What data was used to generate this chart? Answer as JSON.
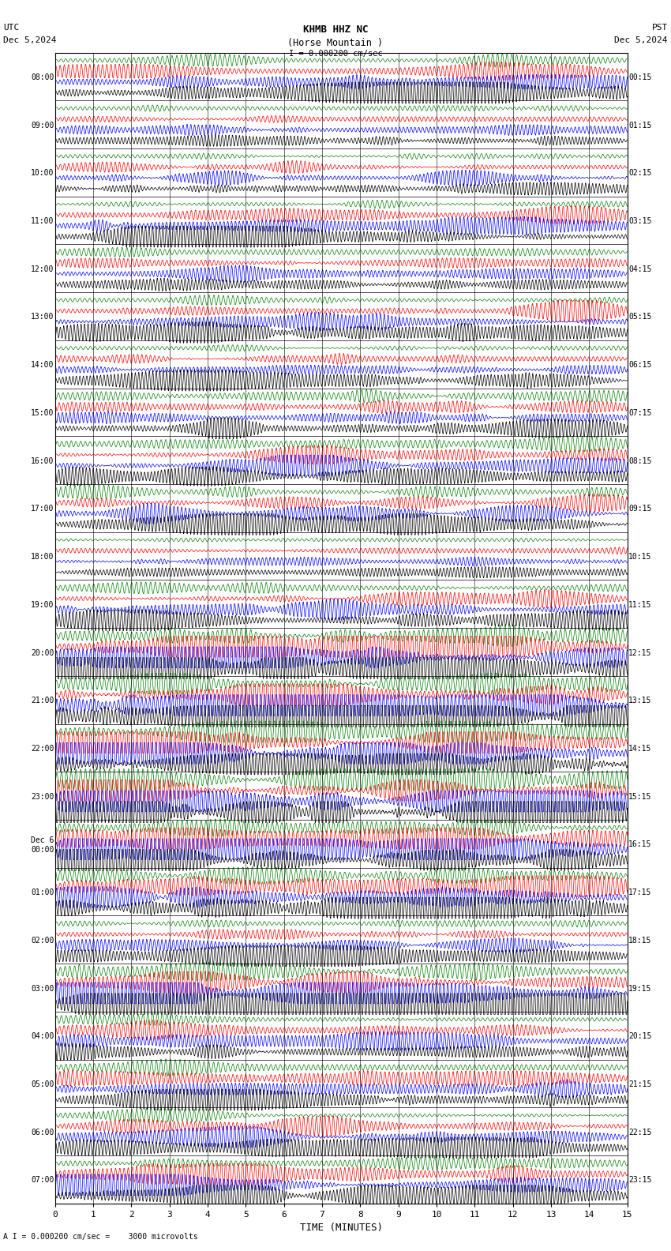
{
  "title_line1": "KHMB HHZ NC",
  "title_line2": "(Horse Mountain )",
  "title_scale": "I = 0.000200 cm/sec",
  "left_timezone": "UTC",
  "left_date": "Dec 5,2024",
  "right_timezone": "PST",
  "right_date": "Dec 5,2024",
  "bottom_label": "TIME (MINUTES)",
  "bottom_note": "A I = 0.000200 cm/sec =    3000 microvolts",
  "xlim": [
    0,
    15
  ],
  "xticks": [
    0,
    1,
    2,
    3,
    4,
    5,
    6,
    7,
    8,
    9,
    10,
    11,
    12,
    13,
    14,
    15
  ],
  "num_rows": 24,
  "utc_labels": [
    "08:00",
    "09:00",
    "10:00",
    "11:00",
    "12:00",
    "13:00",
    "14:00",
    "15:00",
    "16:00",
    "17:00",
    "18:00",
    "19:00",
    "20:00",
    "21:00",
    "22:00",
    "23:00",
    "Dec 6\n00:00",
    "01:00",
    "02:00",
    "03:00",
    "04:00",
    "05:00",
    "06:00",
    "07:00"
  ],
  "pst_labels": [
    "00:15",
    "01:15",
    "02:15",
    "03:15",
    "04:15",
    "05:15",
    "06:15",
    "07:15",
    "08:15",
    "09:15",
    "10:15",
    "11:15",
    "12:15",
    "13:15",
    "14:15",
    "15:15",
    "16:15",
    "17:15",
    "18:15",
    "19:15",
    "20:15",
    "21:15",
    "22:15",
    "23:15"
  ],
  "bg_color": "#ffffff",
  "trace_colors": [
    "#008000",
    "#ff0000",
    "#0000ff",
    "#000000"
  ],
  "grid_color": "#000000",
  "trace_linewidth": 0.5,
  "sub_offsets": [
    0.75,
    0.5,
    0.25,
    0.0
  ],
  "sub_amplitude": 0.22,
  "n_samples": 6000,
  "base_freq": 8.0,
  "noise_scale": 0.15
}
